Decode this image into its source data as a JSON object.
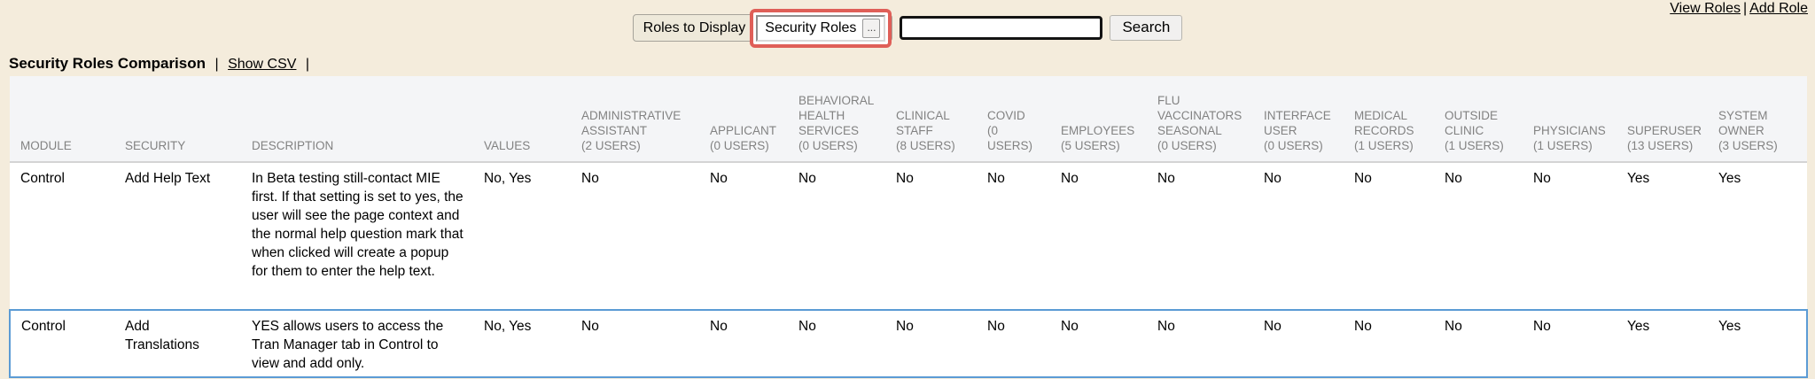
{
  "top_links": {
    "view_roles": "View Roles",
    "separator": "|",
    "add_role": "Add Role"
  },
  "toolbar": {
    "roles_to_display_label": "Roles to Display",
    "roles_select_value": "Security Roles",
    "roles_select_button": "...",
    "search_value": "",
    "search_button_label": "Search",
    "highlight_color": "#df5f58"
  },
  "heading": {
    "title": "Security Roles Comparison",
    "separator": "|",
    "show_csv_label": "Show CSV"
  },
  "table": {
    "base_columns": [
      "MODULE",
      "SECURITY",
      "DESCRIPTION",
      "VALUES"
    ],
    "role_columns": [
      {
        "lines": [
          "ADMINISTRATIVE",
          "ASSISTANT",
          "(2 USERS)"
        ]
      },
      {
        "lines": [
          "APPLICANT",
          "(0 USERS)"
        ]
      },
      {
        "lines": [
          "BEHAVIORAL",
          "HEALTH",
          "SERVICES",
          "(0 USERS)"
        ]
      },
      {
        "lines": [
          "CLINICAL",
          "STAFF",
          "(8 USERS)"
        ]
      },
      {
        "lines": [
          "COVID",
          "(0",
          "USERS)"
        ]
      },
      {
        "lines": [
          "EMPLOYEES",
          "(5 USERS)"
        ]
      },
      {
        "lines": [
          "FLU",
          "VACCINATORS",
          "SEASONAL",
          "(0 USERS)"
        ]
      },
      {
        "lines": [
          "INTERFACE",
          "USER",
          "(0 USERS)"
        ]
      },
      {
        "lines": [
          "MEDICAL",
          "RECORDS",
          "(1 USERS)"
        ]
      },
      {
        "lines": [
          "OUTSIDE",
          "CLINIC",
          "(1 USERS)"
        ]
      },
      {
        "lines": [
          "PHYSICIANS",
          "(1 USERS)"
        ]
      },
      {
        "lines": [
          "SUPERUSER",
          "(13 USERS)"
        ]
      },
      {
        "lines": [
          "SYSTEM",
          "OWNER",
          "(3 USERS)"
        ]
      }
    ],
    "rows": [
      {
        "module": "Control",
        "security": "Add Help Text",
        "description": "In Beta testing still-contact MIE first. If that setting is set to yes, the user will see the page context and the normal help question mark that when clicked will create a popup for them to enter the help text.",
        "values": "No, Yes",
        "role_values": [
          "No",
          "No",
          "No",
          "No",
          "No",
          "No",
          "No",
          "No",
          "No",
          "No",
          "No",
          "Yes",
          "Yes"
        ],
        "highlighted": false
      },
      {
        "module": "Control",
        "security": "Add Translations",
        "description": "YES allows users to access the Tran Manager tab in Control to view and add only.",
        "values": "No, Yes",
        "role_values": [
          "No",
          "No",
          "No",
          "No",
          "No",
          "No",
          "No",
          "No",
          "No",
          "No",
          "No",
          "Yes",
          "Yes"
        ],
        "highlighted": true
      }
    ]
  }
}
